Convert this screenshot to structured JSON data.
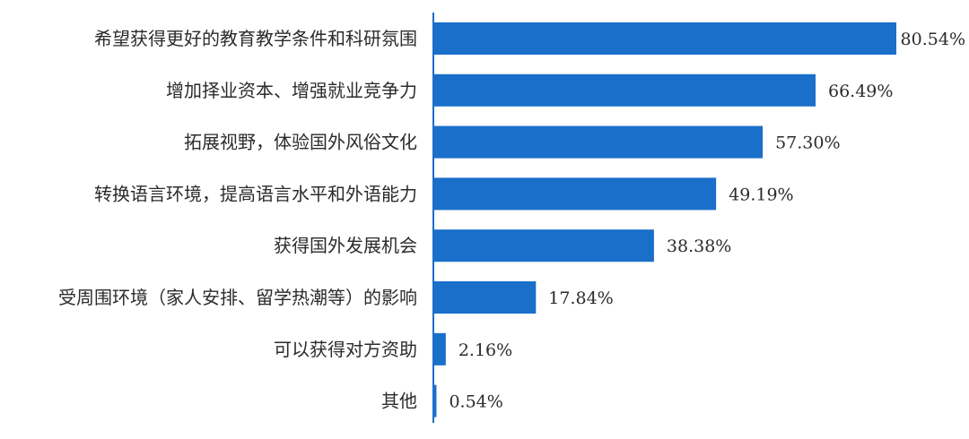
{
  "chart_data": {
    "type": "bar",
    "orientation": "horizontal",
    "categories": [
      "希望获得更好的教育教学条件和科研氛围",
      "增加择业资本、增强就业竞争力",
      "拓展视野，体验国外风俗文化",
      "转换语言环境，提高语言水平和外语能力",
      "获得国外发展机会",
      "受周围环境（家人安排、留学热潮等）的影响",
      "可以获得对方资助",
      "其他"
    ],
    "values": [
      80.54,
      66.49,
      57.3,
      49.19,
      38.38,
      17.84,
      2.16,
      0.54
    ],
    "value_labels": [
      "80.54%",
      "66.49%",
      "57.30%",
      "49.19%",
      "38.38%",
      "17.84%",
      "2.16%",
      "0.54%"
    ],
    "xlim": [
      0,
      80.54
    ],
    "grid": false,
    "legend": "none",
    "colors": {
      "bar": "#1a6fca",
      "axis": "#1a6fca",
      "text": "#2b2b2b"
    }
  }
}
